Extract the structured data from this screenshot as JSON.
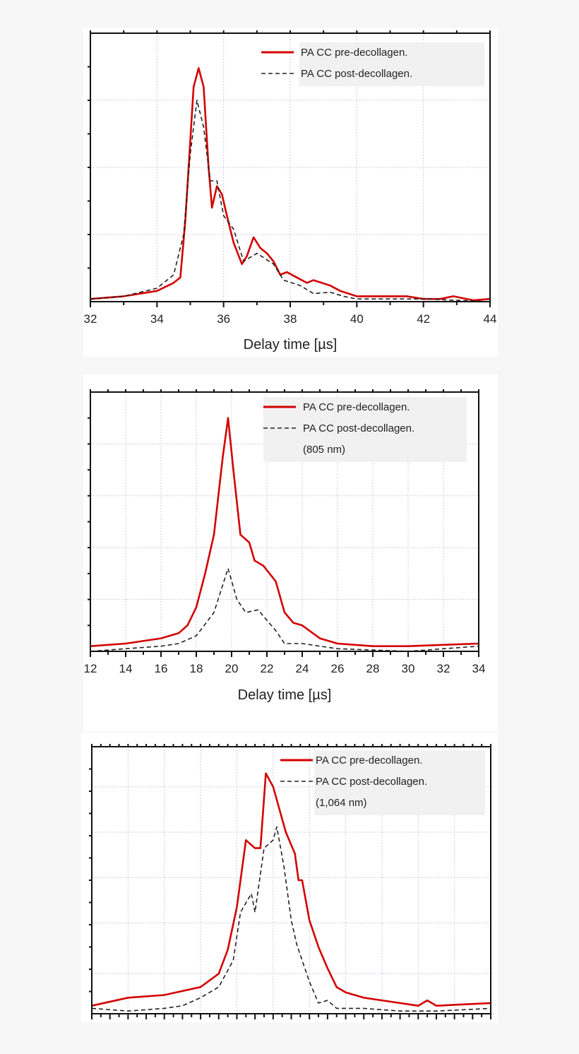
{
  "chart_data": [
    {
      "type": "line",
      "xlabel": "Delay time [µs]",
      "xlim": [
        32,
        44
      ],
      "xticks": [
        "32",
        "34",
        "36",
        "38",
        "40",
        "42",
        "44"
      ],
      "ylim": [
        0,
        1
      ],
      "grid": true,
      "legend_position": "top-right",
      "legend": [
        "PA CC pre-decollagen.",
        "PA CC post-decollagen."
      ],
      "series": [
        {
          "name": "PA CC pre-decollagen.",
          "color": "#d40000",
          "style": "solid",
          "x": [
            32,
            33,
            33.5,
            34,
            34.5,
            34.7,
            34.85,
            35.0,
            35.1,
            35.25,
            35.4,
            35.55,
            35.65,
            35.8,
            35.95,
            36.1,
            36.3,
            36.55,
            36.7,
            36.9,
            37.1,
            37.3,
            37.5,
            37.7,
            37.9,
            38.2,
            38.5,
            38.7,
            39.2,
            39.5,
            40,
            41,
            41.5,
            42,
            42.5,
            42.9,
            43.5,
            44
          ],
          "y": [
            0.01,
            0.02,
            0.03,
            0.04,
            0.07,
            0.09,
            0.3,
            0.6,
            0.8,
            0.87,
            0.8,
            0.5,
            0.35,
            0.43,
            0.4,
            0.32,
            0.22,
            0.14,
            0.17,
            0.24,
            0.2,
            0.18,
            0.15,
            0.1,
            0.11,
            0.09,
            0.07,
            0.08,
            0.06,
            0.04,
            0.02,
            0.02,
            0.02,
            0.01,
            0.01,
            0.02,
            0.005,
            0.01
          ]
        },
        {
          "name": "PA CC post-decollagen.",
          "color": "#222222",
          "style": "dashed",
          "x": [
            32,
            33,
            34,
            34.5,
            34.8,
            35.0,
            35.2,
            35.4,
            35.6,
            35.8,
            36,
            36.3,
            36.6,
            37,
            37.5,
            37.8,
            38.3,
            38.7,
            39.2,
            39.6,
            40,
            42,
            44
          ],
          "y": [
            0.01,
            0.02,
            0.05,
            0.1,
            0.25,
            0.55,
            0.75,
            0.65,
            0.45,
            0.45,
            0.32,
            0.27,
            0.15,
            0.18,
            0.14,
            0.08,
            0.06,
            0.03,
            0.035,
            0.02,
            0.01,
            0.01,
            0.0
          ]
        }
      ]
    },
    {
      "type": "line",
      "xlabel": "Delay time [µs]",
      "xlim": [
        12,
        34
      ],
      "xticks": [
        "12",
        "14",
        "16",
        "18",
        "20",
        "22",
        "24",
        "26",
        "28",
        "30",
        "32",
        "34"
      ],
      "ylim": [
        0,
        1
      ],
      "grid": true,
      "legend_position": "top-right",
      "legend": [
        "PA CC pre-decollagen.",
        "PA CC post-decollagen.",
        "(805 nm)"
      ],
      "series": [
        {
          "name": "PA CC pre-decollagen.",
          "color": "#d40000",
          "style": "solid",
          "x": [
            12,
            14,
            16,
            17,
            17.5,
            18,
            18.5,
            19,
            19.5,
            19.8,
            20.1,
            20.5,
            21,
            21.3,
            21.8,
            22.5,
            23,
            23.5,
            24,
            25,
            26,
            28,
            30,
            32,
            34
          ],
          "y": [
            0.02,
            0.03,
            0.05,
            0.07,
            0.1,
            0.17,
            0.3,
            0.45,
            0.75,
            0.9,
            0.7,
            0.45,
            0.42,
            0.35,
            0.33,
            0.27,
            0.15,
            0.11,
            0.1,
            0.05,
            0.03,
            0.02,
            0.02,
            0.025,
            0.03
          ]
        },
        {
          "name": "PA CC post-decollagen.",
          "color": "#222222",
          "style": "dashed",
          "x": [
            12,
            14,
            16,
            17,
            18,
            19,
            19.8,
            20.3,
            20.8,
            21.5,
            22,
            22.5,
            23,
            24,
            26,
            30,
            34
          ],
          "y": [
            0.0,
            0.01,
            0.02,
            0.03,
            0.06,
            0.15,
            0.32,
            0.2,
            0.15,
            0.16,
            0.12,
            0.08,
            0.03,
            0.03,
            0.01,
            0.0,
            0.02
          ]
        }
      ]
    },
    {
      "type": "line",
      "xlabel": "",
      "xlim": [
        0,
        22
      ],
      "xticks": [],
      "ylim": [
        0,
        1
      ],
      "grid": true,
      "legend_position": "top-right",
      "legend": [
        "PA CC pre-decollagen.",
        "PA CC post-decollagen.",
        "(1,064 nm)"
      ],
      "series": [
        {
          "name": "PA CC pre-decollagen.",
          "color": "#d40000",
          "style": "solid",
          "x": [
            0,
            2,
            4,
            6,
            7,
            7.5,
            8,
            8.5,
            9,
            9.3,
            9.6,
            10,
            10.7,
            11.2,
            11.4,
            11.6,
            12,
            12.5,
            13,
            13.5,
            14,
            15,
            16,
            17,
            18,
            18.5,
            19,
            22
          ],
          "y": [
            0.03,
            0.06,
            0.07,
            0.1,
            0.15,
            0.24,
            0.4,
            0.65,
            0.62,
            0.62,
            0.9,
            0.85,
            0.68,
            0.6,
            0.5,
            0.5,
            0.35,
            0.25,
            0.17,
            0.1,
            0.08,
            0.06,
            0.05,
            0.04,
            0.03,
            0.05,
            0.03,
            0.04
          ]
        },
        {
          "name": "PA CC post-decollagen.",
          "color": "#222222",
          "style": "dashed",
          "x": [
            0,
            2,
            4,
            5,
            6,
            7,
            7.8,
            8.2,
            8.8,
            9,
            9.5,
            10,
            10.2,
            10.6,
            11,
            11.3,
            11.6,
            12,
            12.5,
            13,
            13.5,
            15,
            17,
            19,
            22
          ],
          "y": [
            0.02,
            0.01,
            0.02,
            0.03,
            0.06,
            0.1,
            0.2,
            0.38,
            0.45,
            0.38,
            0.62,
            0.65,
            0.7,
            0.55,
            0.35,
            0.26,
            0.2,
            0.12,
            0.04,
            0.05,
            0.02,
            0.02,
            0.01,
            0.01,
            0.02
          ]
        }
      ]
    }
  ]
}
